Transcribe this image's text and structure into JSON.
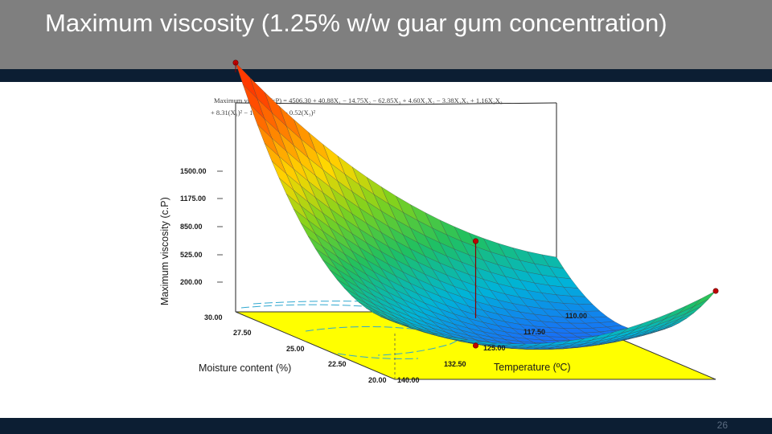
{
  "slide": {
    "title": "Maximum viscosity (1.25% w/w guar gum concentration)",
    "page_number": "26",
    "colors": {
      "header": "#7f7f7f",
      "band": "#0c1e33",
      "title_text": "#ffffff"
    }
  },
  "chart_data": {
    "type": "surface3d",
    "equation_line1": "Maximum viscosity (cP) = 4506.30 + 40.88X₁ − 14.75X₂ − 62.85X₃ + 4.60X₁X₂ − 3.38X₁X₃ + 1.16X₂X₃",
    "equation_line2": "+ 8.31(X₁)² − 103.10(X₂)² − 0.52(X₃)²",
    "zlabel": "Maximum viscosity (c.P)",
    "xlabel": "Moisture content (%)",
    "ylabel": "Temperature (ºC)",
    "z_ticks": [
      "1500.00",
      "1175.00",
      "850.00",
      "525.00",
      "200.00"
    ],
    "x_ticks": [
      "30.00",
      "27.50",
      "25.00",
      "22.50",
      "20.00"
    ],
    "y_ticks": [
      "140.00",
      "132.50",
      "125.00",
      "117.50",
      "110.00"
    ],
    "zlim": [
      200,
      1500
    ],
    "xlim": [
      20,
      30
    ],
    "ylim": [
      110,
      140
    ],
    "surface_corners": [
      {
        "moisture": 30,
        "temperature": 140,
        "viscosity": 1750
      },
      {
        "moisture": 30,
        "temperature": 110,
        "viscosity": 540
      },
      {
        "moisture": 20,
        "temperature": 140,
        "viscosity": 560
      },
      {
        "moisture": 20,
        "temperature": 110,
        "viscosity": 750
      }
    ],
    "surface_minimum": {
      "moisture": 22,
      "temperature": 125,
      "viscosity": 250
    },
    "design_points": [
      {
        "moisture": 30,
        "temperature": 140,
        "viscosity": 1750
      },
      {
        "moisture": 25,
        "temperature": 125,
        "viscosity": 850
      },
      {
        "moisture": 20,
        "temperature": 110,
        "viscosity": 750
      },
      {
        "moisture": 25,
        "temperature": 125,
        "viscosity": 200
      }
    ],
    "surface_colormap": [
      "#1e5cff",
      "#00b4d8",
      "#20c060",
      "#7fd21e",
      "#ffd700",
      "#ff7f00",
      "#ff3a00"
    ],
    "floor_color": "#ffff00",
    "contour_color": "#30a8d0",
    "point_color": "#c00000"
  }
}
